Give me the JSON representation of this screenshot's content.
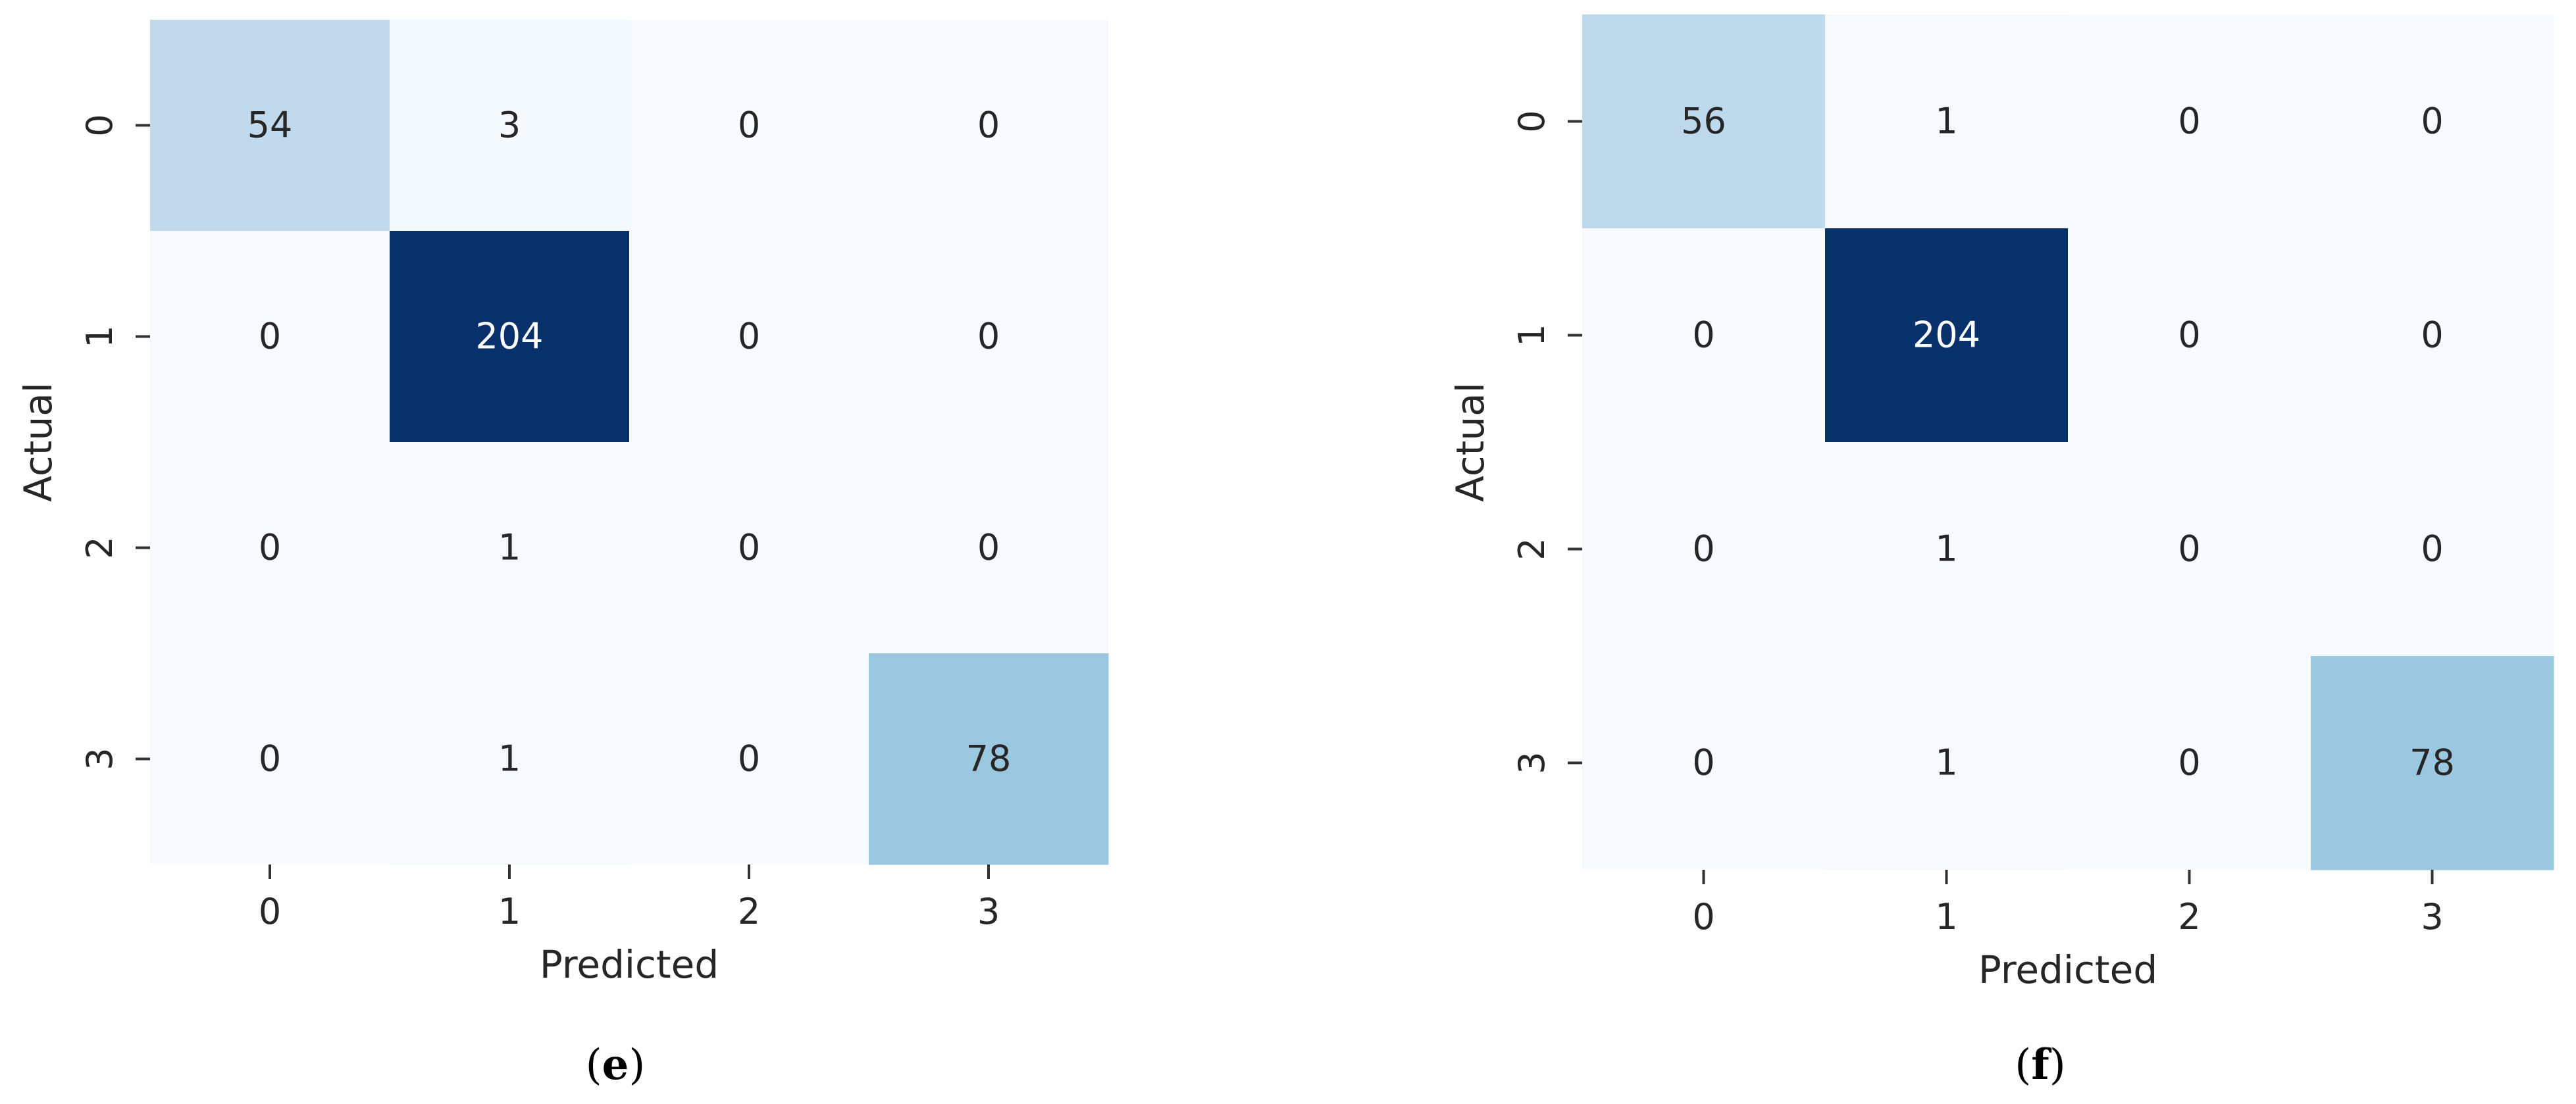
{
  "chart_data": [
    {
      "type": "heatmap",
      "panel_label": "e",
      "xlabel": "Predicted",
      "ylabel": "Actual",
      "x_tick_labels": [
        "0",
        "1",
        "2",
        "3"
      ],
      "y_tick_labels": [
        "0",
        "1",
        "2",
        "3"
      ],
      "colormap": "Blues",
      "vmin": 0,
      "vmax": 204,
      "matrix": [
        [
          54,
          3,
          0,
          0
        ],
        [
          0,
          204,
          0,
          0
        ],
        [
          0,
          1,
          0,
          0
        ],
        [
          0,
          1,
          0,
          78
        ]
      ]
    },
    {
      "type": "heatmap",
      "panel_label": "f",
      "xlabel": "Predicted",
      "ylabel": "Actual",
      "x_tick_labels": [
        "0",
        "1",
        "2",
        "3"
      ],
      "y_tick_labels": [
        "0",
        "1",
        "2",
        "3"
      ],
      "colormap": "Blues",
      "vmin": 0,
      "vmax": 204,
      "matrix": [
        [
          56,
          1,
          0,
          0
        ],
        [
          0,
          204,
          0,
          0
        ],
        [
          0,
          1,
          0,
          0
        ],
        [
          0,
          1,
          0,
          78
        ]
      ]
    }
  ],
  "captions": [
    {
      "open": "(",
      "letter": "e",
      "close": ")"
    },
    {
      "open": "(",
      "letter": "f",
      "close": ")"
    }
  ],
  "colors": {
    "text_dark": "#262626",
    "text_light": "#ffffff",
    "tick": "#333333",
    "background": "#ffffff"
  }
}
